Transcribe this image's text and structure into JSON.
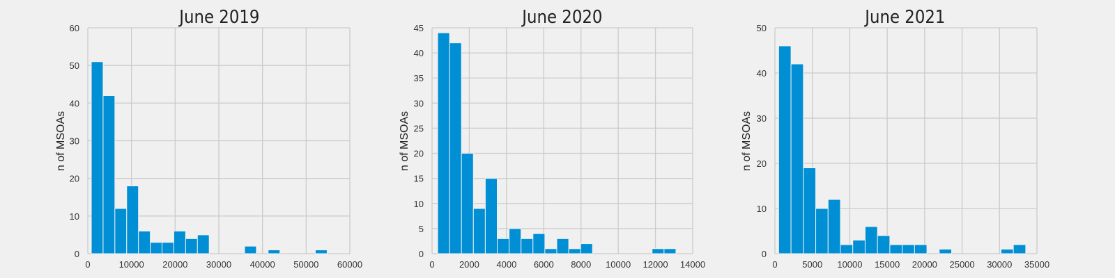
{
  "chart_data": [
    {
      "type": "bar",
      "title": "June 2019",
      "xlabel": "",
      "ylabel": "n of MSOAs",
      "xlim": [
        0,
        60000
      ],
      "ylim": [
        0,
        60
      ],
      "xticks": [
        0,
        10000,
        20000,
        30000,
        40000,
        50000,
        60000
      ],
      "yticks": [
        0,
        10,
        20,
        30,
        40,
        50,
        60
      ],
      "grid": true,
      "bins": [
        {
          "start": 800,
          "end": 3500,
          "count": 51
        },
        {
          "start": 3500,
          "end": 6200,
          "count": 42
        },
        {
          "start": 6200,
          "end": 8900,
          "count": 12
        },
        {
          "start": 8900,
          "end": 11600,
          "count": 18
        },
        {
          "start": 11600,
          "end": 14300,
          "count": 6
        },
        {
          "start": 14300,
          "end": 17000,
          "count": 3
        },
        {
          "start": 17000,
          "end": 19700,
          "count": 3
        },
        {
          "start": 19700,
          "end": 22400,
          "count": 6
        },
        {
          "start": 22400,
          "end": 25100,
          "count": 4
        },
        {
          "start": 25100,
          "end": 27800,
          "count": 5
        },
        {
          "start": 27800,
          "end": 30500,
          "count": 0
        },
        {
          "start": 30500,
          "end": 33200,
          "count": 0
        },
        {
          "start": 33200,
          "end": 35900,
          "count": 0
        },
        {
          "start": 35900,
          "end": 38600,
          "count": 2
        },
        {
          "start": 38600,
          "end": 41300,
          "count": 0
        },
        {
          "start": 41300,
          "end": 44000,
          "count": 1
        },
        {
          "start": 44000,
          "end": 46700,
          "count": 0
        },
        {
          "start": 46700,
          "end": 49400,
          "count": 0
        },
        {
          "start": 49400,
          "end": 52100,
          "count": 0
        },
        {
          "start": 52100,
          "end": 54800,
          "count": 1
        }
      ]
    },
    {
      "type": "bar",
      "title": "June 2020",
      "xlabel": "",
      "ylabel": "n of MSOAs",
      "xlim": [
        0,
        14000
      ],
      "ylim": [
        0,
        45
      ],
      "xticks": [
        0,
        2000,
        4000,
        6000,
        8000,
        10000,
        12000,
        14000
      ],
      "yticks": [
        0,
        5,
        10,
        15,
        20,
        25,
        30,
        35,
        40,
        45
      ],
      "grid": true,
      "bins": [
        {
          "start": 300,
          "end": 940,
          "count": 44
        },
        {
          "start": 940,
          "end": 1580,
          "count": 42
        },
        {
          "start": 1580,
          "end": 2220,
          "count": 20
        },
        {
          "start": 2220,
          "end": 2860,
          "count": 9
        },
        {
          "start": 2860,
          "end": 3500,
          "count": 15
        },
        {
          "start": 3500,
          "end": 4140,
          "count": 3
        },
        {
          "start": 4140,
          "end": 4780,
          "count": 5
        },
        {
          "start": 4780,
          "end": 5420,
          "count": 3
        },
        {
          "start": 5420,
          "end": 6060,
          "count": 4
        },
        {
          "start": 6060,
          "end": 6700,
          "count": 1
        },
        {
          "start": 6700,
          "end": 7340,
          "count": 3
        },
        {
          "start": 7340,
          "end": 7980,
          "count": 1
        },
        {
          "start": 7980,
          "end": 8620,
          "count": 2
        },
        {
          "start": 8620,
          "end": 9260,
          "count": 0
        },
        {
          "start": 9260,
          "end": 9900,
          "count": 0
        },
        {
          "start": 9900,
          "end": 10540,
          "count": 0
        },
        {
          "start": 10540,
          "end": 11180,
          "count": 0
        },
        {
          "start": 11180,
          "end": 11820,
          "count": 0
        },
        {
          "start": 11820,
          "end": 12460,
          "count": 1
        },
        {
          "start": 12460,
          "end": 13100,
          "count": 1
        }
      ]
    },
    {
      "type": "bar",
      "title": "June 2021",
      "xlabel": "",
      "ylabel": "n of MSOAs",
      "xlim": [
        0,
        35000
      ],
      "ylim": [
        0,
        50
      ],
      "xticks": [
        0,
        5000,
        10000,
        15000,
        20000,
        25000,
        30000,
        35000
      ],
      "yticks": [
        0,
        10,
        20,
        30,
        40,
        50
      ],
      "grid": true,
      "bins": [
        {
          "start": 500,
          "end": 2150,
          "count": 46
        },
        {
          "start": 2150,
          "end": 3800,
          "count": 42
        },
        {
          "start": 3800,
          "end": 5450,
          "count": 19
        },
        {
          "start": 5450,
          "end": 7100,
          "count": 10
        },
        {
          "start": 7100,
          "end": 8750,
          "count": 12
        },
        {
          "start": 8750,
          "end": 10400,
          "count": 2
        },
        {
          "start": 10400,
          "end": 12050,
          "count": 3
        },
        {
          "start": 12050,
          "end": 13700,
          "count": 6
        },
        {
          "start": 13700,
          "end": 15350,
          "count": 4
        },
        {
          "start": 15350,
          "end": 17000,
          "count": 2
        },
        {
          "start": 17000,
          "end": 18650,
          "count": 2
        },
        {
          "start": 18650,
          "end": 20300,
          "count": 2
        },
        {
          "start": 20300,
          "end": 21950,
          "count": 0
        },
        {
          "start": 21950,
          "end": 23600,
          "count": 1
        },
        {
          "start": 23600,
          "end": 25250,
          "count": 0
        },
        {
          "start": 25250,
          "end": 26900,
          "count": 0
        },
        {
          "start": 26900,
          "end": 28550,
          "count": 0
        },
        {
          "start": 28550,
          "end": 30200,
          "count": 0
        },
        {
          "start": 30200,
          "end": 31850,
          "count": 1
        },
        {
          "start": 31850,
          "end": 33500,
          "count": 2
        }
      ]
    }
  ]
}
